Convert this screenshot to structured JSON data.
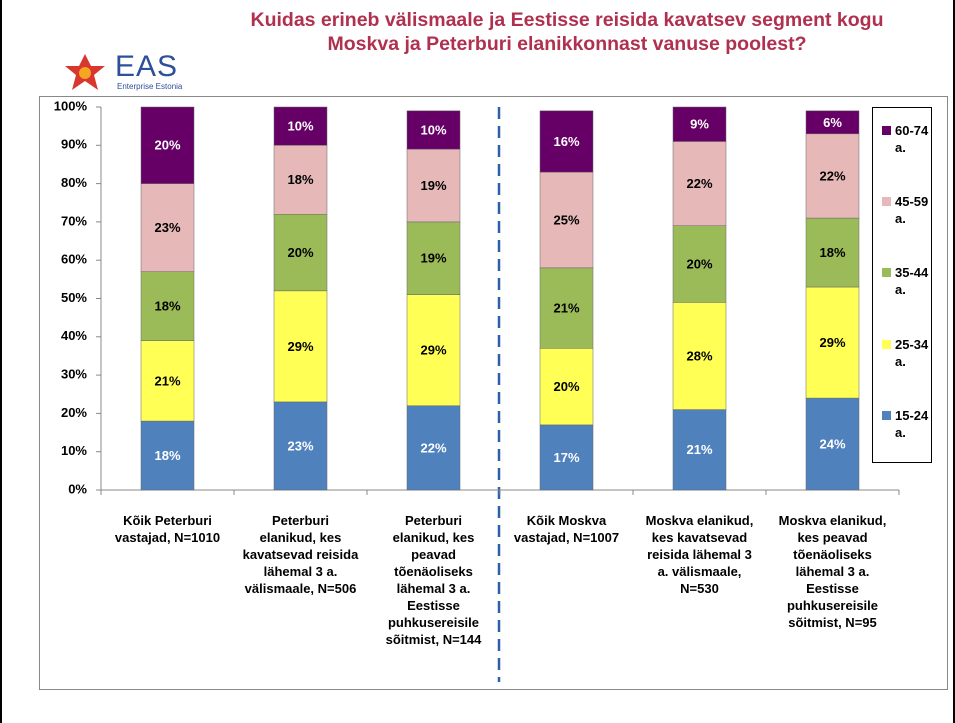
{
  "logo": {
    "name": "EAS",
    "subtitle": "Enterprise Estonia"
  },
  "chart_data": {
    "type": "stacked_bar",
    "title": "Kuidas erineb välismaale ja Eestisse reisida kavatsev segment kogu Moskva ja Peterburi elanikkonnast vanuse poolest?",
    "categories": [
      "Kõik Peterburi\nvastajad, N=1010",
      "Peterburi\nelanikud, kes\nkavatsevad reisida\nlähemal 3 a.\nvälismaale, N=506",
      "Peterburi\nelanikud, kes\npeavad\ntõenäoliseks\nlähemal 3 a.\nEestisse\npuhkusereisile\nsõitmist, N=144",
      "Kõik Moskva\nvastajad, N=1007",
      "Moskva elanikud,\nkes kavatsevad\nreisida lähemal 3\na. välismaale,\nN=530",
      "Moskva elanikud,\nkes peavad\ntõenäoliseks\nlähemal 3 a.\nEestisse\npuhkusereisile\nsõitmist, N=95"
    ],
    "series": [
      {
        "name": "15-24 a.",
        "color": "#4f81bd",
        "values": [
          18,
          23,
          22,
          17,
          21,
          24
        ],
        "value_labels": [
          "18%",
          "23%",
          "22%",
          "17%",
          "21%",
          "24%"
        ]
      },
      {
        "name": "25-34 a.",
        "color": "#ffff55",
        "values": [
          21,
          29,
          29,
          20,
          28,
          29
        ],
        "value_labels": [
          "21%",
          "29%",
          "29%",
          "20%",
          "28%",
          "29%"
        ]
      },
      {
        "name": "35-44 a.",
        "color": "#9bbb59",
        "values": [
          18,
          20,
          19,
          21,
          20,
          18
        ],
        "value_labels": [
          "18%",
          "20%",
          "19%",
          "21%",
          "20%",
          "18%"
        ]
      },
      {
        "name": "45-59 a.",
        "color": "#e6b9b8",
        "values": [
          23,
          18,
          19,
          25,
          22,
          22
        ],
        "value_labels": [
          "23%",
          "18%",
          "19%",
          "25%",
          "22%",
          "22%"
        ]
      },
      {
        "name": "60-74 a.",
        "color": "#660066",
        "values": [
          20,
          10,
          10,
          16,
          9,
          6
        ],
        "value_labels": [
          "20%",
          "10%",
          "10%",
          "16%",
          "9%",
          "6%"
        ]
      }
    ],
    "ylim": [
      0,
      100
    ],
    "yticks": [
      {
        "value": 0,
        "label": "0%"
      },
      {
        "value": 10,
        "label": "10%"
      },
      {
        "value": 20,
        "label": "20%"
      },
      {
        "value": 30,
        "label": "30%"
      },
      {
        "value": 40,
        "label": "40%"
      },
      {
        "value": 50,
        "label": "50%"
      },
      {
        "value": 60,
        "label": "60%"
      },
      {
        "value": 70,
        "label": "70%"
      },
      {
        "value": 80,
        "label": "80%"
      },
      {
        "value": 90,
        "label": "90%"
      },
      {
        "value": 100,
        "label": "100%"
      }
    ],
    "legend": "right"
  }
}
